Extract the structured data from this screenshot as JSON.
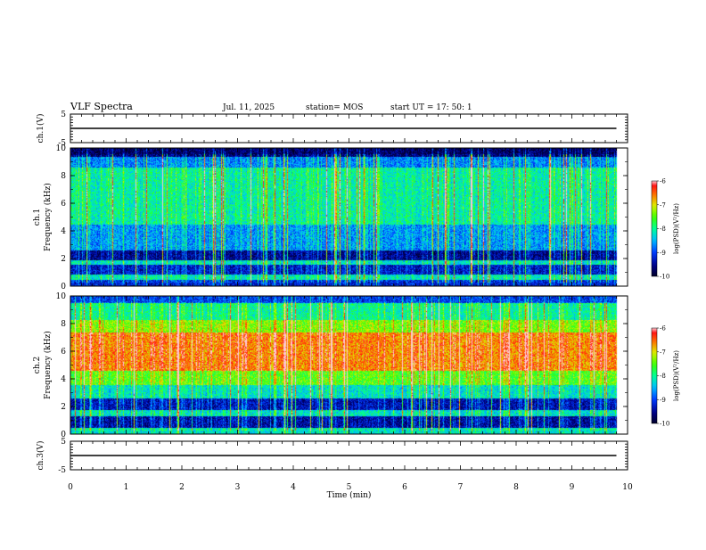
{
  "header": {
    "title": "VLF Spectra",
    "date": "Jul. 11, 2025",
    "station": "station= MOS",
    "start": "start UT =  17: 50: 1"
  },
  "chart_data": [
    {
      "type": "line",
      "panel": "ch1-voltage",
      "ylabel": "ch.1(V)",
      "ylim": [
        -5,
        5
      ],
      "yticks_labeled": [
        "5",
        "-5"
      ],
      "x": [
        0,
        9.8
      ],
      "values": [
        0,
        0
      ]
    },
    {
      "type": "heatmap",
      "panel": "ch1-spectrogram",
      "ylabel_line1": "ch.1",
      "ylabel_line2": "Frequency (kHz)",
      "ylim": [
        0,
        10
      ],
      "yticks": [
        "0",
        "2",
        "4",
        "6",
        "8",
        "10"
      ],
      "data_xrange": [
        0,
        9.8
      ],
      "colorbar": {
        "label": "log(PSD)(V²/Hz)",
        "range": [
          -10,
          -6
        ],
        "ticks": [
          "-6",
          "-7",
          "-8",
          "-9",
          "-10"
        ]
      },
      "colors": {
        "low": "#000060",
        "mid": "#00ff60",
        "high": "#ff1010"
      }
    },
    {
      "type": "heatmap",
      "panel": "ch2-spectrogram",
      "ylabel_line1": "ch.2",
      "ylabel_line2": "Frequency (kHz)",
      "ylim": [
        0,
        10
      ],
      "yticks": [
        "0",
        "2",
        "4",
        "6",
        "8",
        "10"
      ],
      "data_xrange": [
        0,
        9.8
      ],
      "colorbar": {
        "label": "log(PSD)(V²/Hz)",
        "range": [
          -10,
          -6
        ],
        "ticks": [
          "-6",
          "-7",
          "-8",
          "-9",
          "-10"
        ]
      }
    },
    {
      "type": "line",
      "panel": "ch3-voltage",
      "ylabel": "ch.3(V)",
      "ylim": [
        -5,
        5
      ],
      "yticks_labeled": [
        "5",
        "-5"
      ],
      "x": [
        0,
        9.8
      ],
      "values": [
        0,
        0
      ]
    }
  ],
  "xaxis": {
    "label": "Time (min)",
    "range": [
      0,
      10
    ],
    "ticks": [
      "0",
      "1",
      "2",
      "3",
      "4",
      "5",
      "6",
      "7",
      "8",
      "9",
      "10"
    ]
  }
}
